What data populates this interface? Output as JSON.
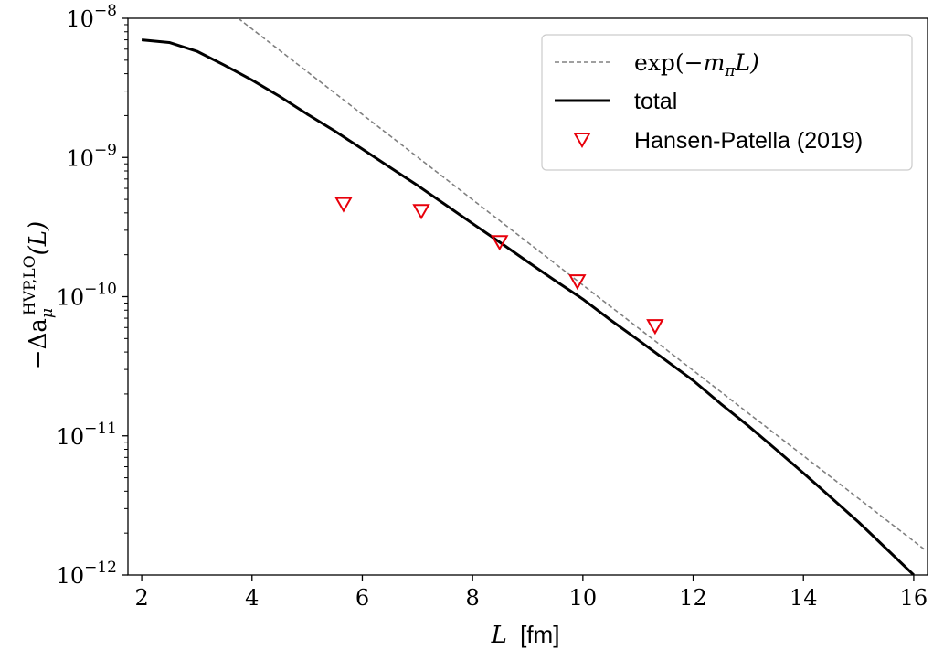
{
  "chart_data": {
    "type": "line",
    "xlabel": "L [fm]",
    "xlabel_var": "L",
    "xlabel_unit": "[fm]",
    "ylabel": "−Δa_μ^{HVP,LO}(L)",
    "ylabel_main": "−Δa",
    "ylabel_sub": "μ",
    "ylabel_sup": "HVP,LO",
    "ylabel_arg": "(L)",
    "xlim": [
      1.75,
      16.25
    ],
    "ylim": [
      1e-12,
      1e-08
    ],
    "yscale": "log",
    "xticks": [
      2,
      4,
      6,
      8,
      10,
      12,
      14,
      16
    ],
    "xtick_labels": [
      "2",
      "4",
      "6",
      "8",
      "10",
      "12",
      "14",
      "16"
    ],
    "yticks": [
      1e-12,
      1e-11,
      1e-10,
      1e-09,
      1e-08
    ],
    "ytick_labels": [
      {
        "base": "10",
        "exp": "−12"
      },
      {
        "base": "10",
        "exp": "−11"
      },
      {
        "base": "10",
        "exp": "−10"
      },
      {
        "base": "10",
        "exp": "−9"
      },
      {
        "base": "10",
        "exp": "−8"
      }
    ],
    "grid": false,
    "legend_position": "top-right",
    "series": [
      {
        "name": "exp(−m_π L)",
        "legend_plain": "exp(",
        "legend_math": "−m",
        "legend_sub": "π",
        "legend_tail": "L)",
        "style": "dashed",
        "color": "#808080",
        "x": [
          3.75,
          16.2
        ],
        "y": [
          1e-08,
          1.52e-12
        ]
      },
      {
        "name": "total",
        "style": "solid",
        "color": "#000000",
        "x": [
          2.0,
          2.5,
          3.0,
          3.5,
          4.0,
          4.5,
          5.0,
          5.5,
          6.0,
          6.5,
          7.0,
          7.5,
          8.0,
          8.5,
          9.0,
          9.5,
          10.0,
          10.5,
          11.0,
          11.5,
          12.0,
          12.5,
          13.0,
          13.5,
          14.0,
          14.5,
          15.0,
          15.5,
          16.0
        ],
        "y": [
          7e-09,
          6.7e-09,
          5.8e-09,
          4.6e-09,
          3.6e-09,
          2.75e-09,
          2.05e-09,
          1.55e-09,
          1.15e-09,
          8.5e-10,
          6.3e-10,
          4.6e-10,
          3.35e-10,
          2.45e-10,
          1.78e-10,
          1.3e-10,
          9.6e-11,
          6.8e-11,
          4.9e-11,
          3.5e-11,
          2.5e-11,
          1.7e-11,
          1.18e-11,
          8e-12,
          5.4e-12,
          3.6e-12,
          2.4e-12,
          1.55e-12,
          1e-12
        ]
      },
      {
        "name": "Hansen-Patella (2019)",
        "style": "marker",
        "marker": "triangle-down",
        "color": "#e8000b",
        "x": [
          5.66,
          7.07,
          8.49,
          9.9,
          11.31
        ],
        "y": [
          4.6e-10,
          4.1e-10,
          2.45e-10,
          1.28e-10,
          6.1e-11
        ]
      }
    ]
  }
}
